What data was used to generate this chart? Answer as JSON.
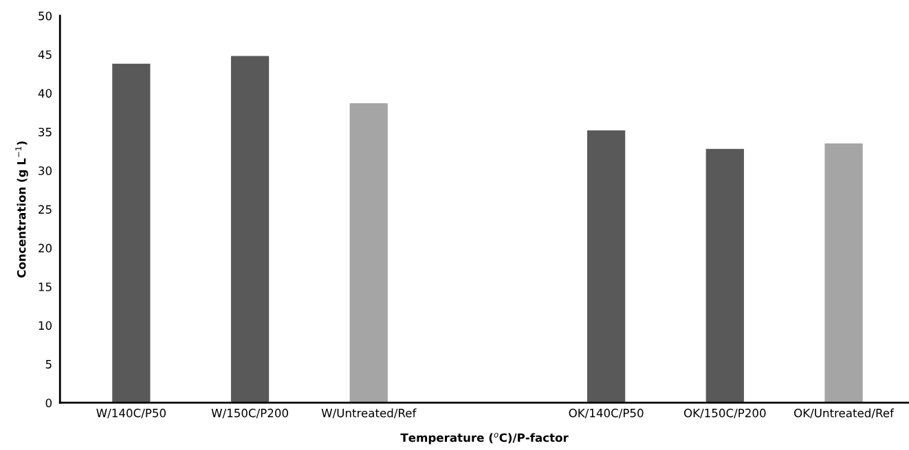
{
  "chart_data": {
    "type": "bar",
    "xlabel": "Temperature ($^{o}$C)/P-factor",
    "ylabel": "Concentration (g L$^{−1}$)",
    "categories": [
      "W/140C/P50",
      "W/150C/P200",
      "W/Untreated/Ref",
      null,
      "OK/140C/P50",
      "OK/150C/P200",
      "OK/Untreated/Ref"
    ],
    "values": [
      43.8,
      44.8,
      38.7,
      null,
      35.2,
      32.8,
      33.5
    ],
    "colors": [
      "#595959",
      "#595959",
      "#a5a5a5",
      "#595959",
      "#595959",
      "#595959",
      "#a5a5a5"
    ],
    "ylim": [
      0,
      50
    ],
    "yticks": [
      0,
      5,
      10,
      15,
      20,
      25,
      30,
      35,
      40,
      45,
      50
    ],
    "grid": false,
    "legend": false
  }
}
